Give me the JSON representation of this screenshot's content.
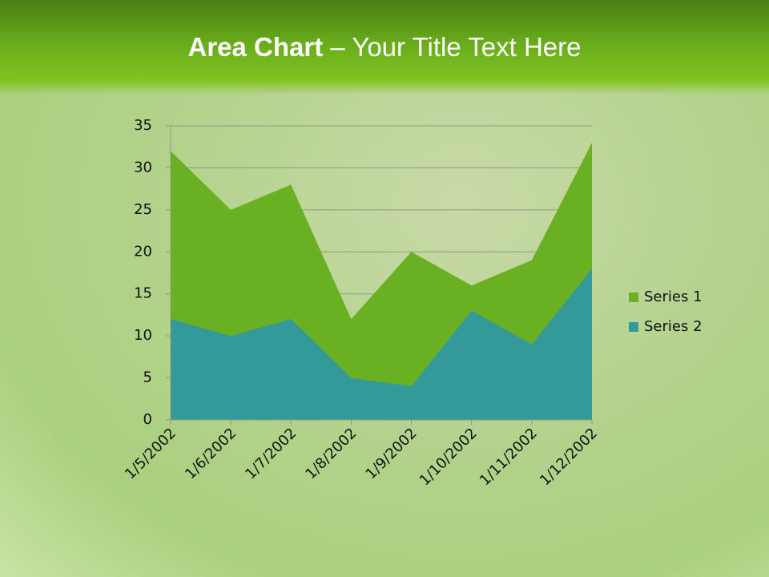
{
  "chart_data": {
    "type": "area",
    "title": {
      "bold": "Area Chart",
      "rest": "– Your Title Text Here"
    },
    "categories": [
      "1/5/2002",
      "1/6/2002",
      "1/7/2002",
      "1/8/2002",
      "1/9/2002",
      "1/10/2002",
      "1/11/2002",
      "1/12/2002"
    ],
    "series": [
      {
        "name": "Series 1",
        "color": "#6ab023",
        "values": [
          32,
          25,
          28,
          12,
          20,
          16,
          19,
          33
        ]
      },
      {
        "name": "Series 2",
        "color": "#339a99",
        "values": [
          12,
          10,
          12,
          5,
          4,
          13,
          9,
          18
        ]
      }
    ],
    "ylim": [
      0,
      35
    ],
    "yticks": [
      0,
      5,
      10,
      15,
      20,
      25,
      30,
      35
    ],
    "grid": true,
    "legend": "right"
  }
}
